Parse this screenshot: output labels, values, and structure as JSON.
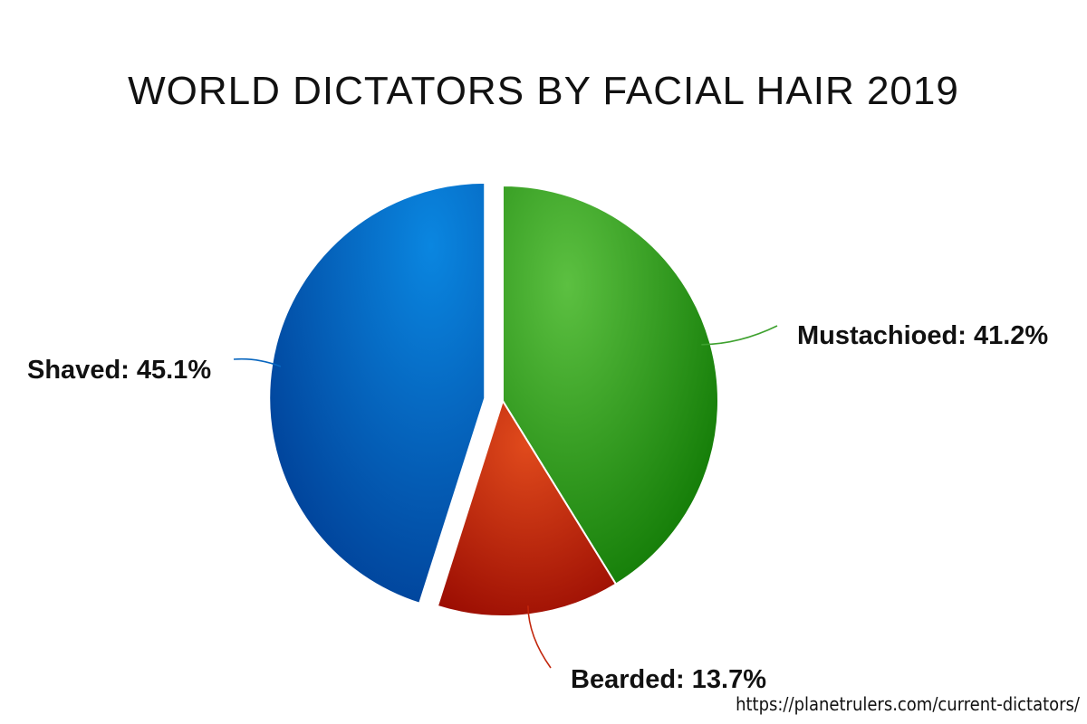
{
  "chart_data": {
    "type": "pie",
    "title": "WORLD DICTATORS BY FACIAL HAIR 2019",
    "slices": [
      {
        "label": "Mustachioed",
        "value": 41.2,
        "display": "Mustachioed: 41.2%",
        "color": "#3ea12f"
      },
      {
        "label": "Bearded",
        "value": 13.7,
        "display": "Bearded: 13.7%",
        "color": "#c2260c"
      },
      {
        "label": "Shaved",
        "value": 45.1,
        "display": "Shaved: 45.1%",
        "color": "#0866bf",
        "exploded": true
      }
    ],
    "legend": "none",
    "label_placement": "outside with leader lines"
  },
  "source": "https://planetrulers.com/current-dictators/"
}
